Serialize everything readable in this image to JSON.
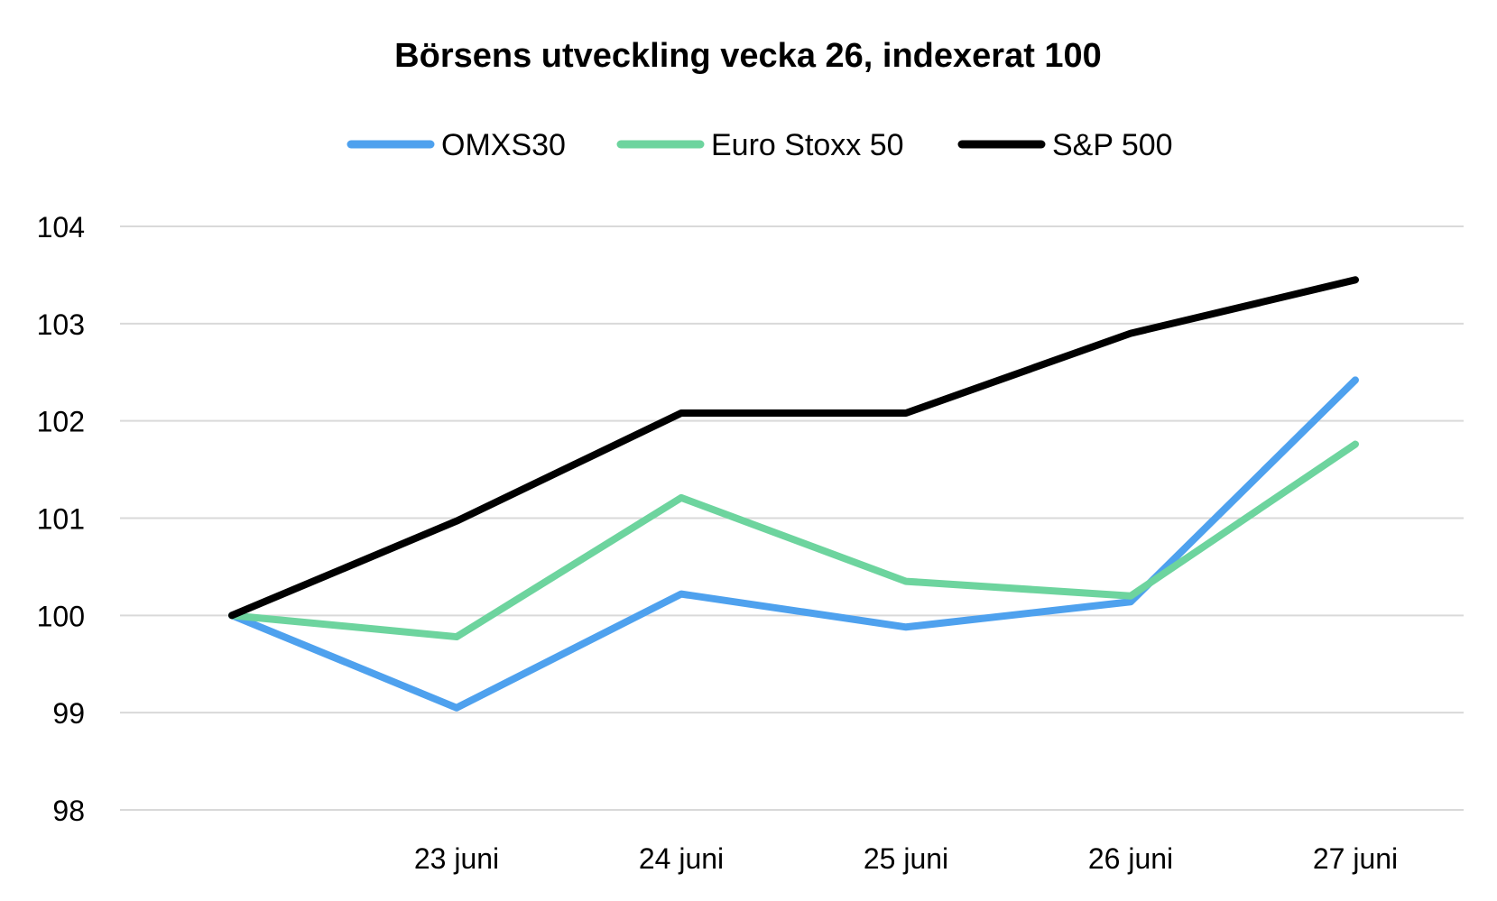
{
  "chart_data": {
    "type": "line",
    "title": "Börsens utveckling vecka 26, indexerat 100",
    "xlabel": "",
    "ylabel": "",
    "categories": [
      "",
      "23 juni",
      "24 juni",
      "25 juni",
      "26 juni",
      "27 juni"
    ],
    "ylim": [
      98,
      104
    ],
    "yticks": [
      "98",
      "99",
      "100",
      "101",
      "102",
      "103",
      "104"
    ],
    "grid": true,
    "legend_position": "top",
    "series": [
      {
        "name": "OMXS30",
        "color": "#4ea1ee",
        "values": [
          100,
          99.05,
          100.22,
          99.88,
          100.14,
          102.42
        ]
      },
      {
        "name": "Euro Stoxx 50",
        "color": "#6dd49e",
        "values": [
          100,
          99.78,
          101.21,
          100.35,
          100.2,
          101.76
        ]
      },
      {
        "name": "S&P 500",
        "color": "#000000",
        "values": [
          100,
          100.97,
          102.08,
          102.08,
          102.9,
          103.45
        ]
      }
    ]
  }
}
